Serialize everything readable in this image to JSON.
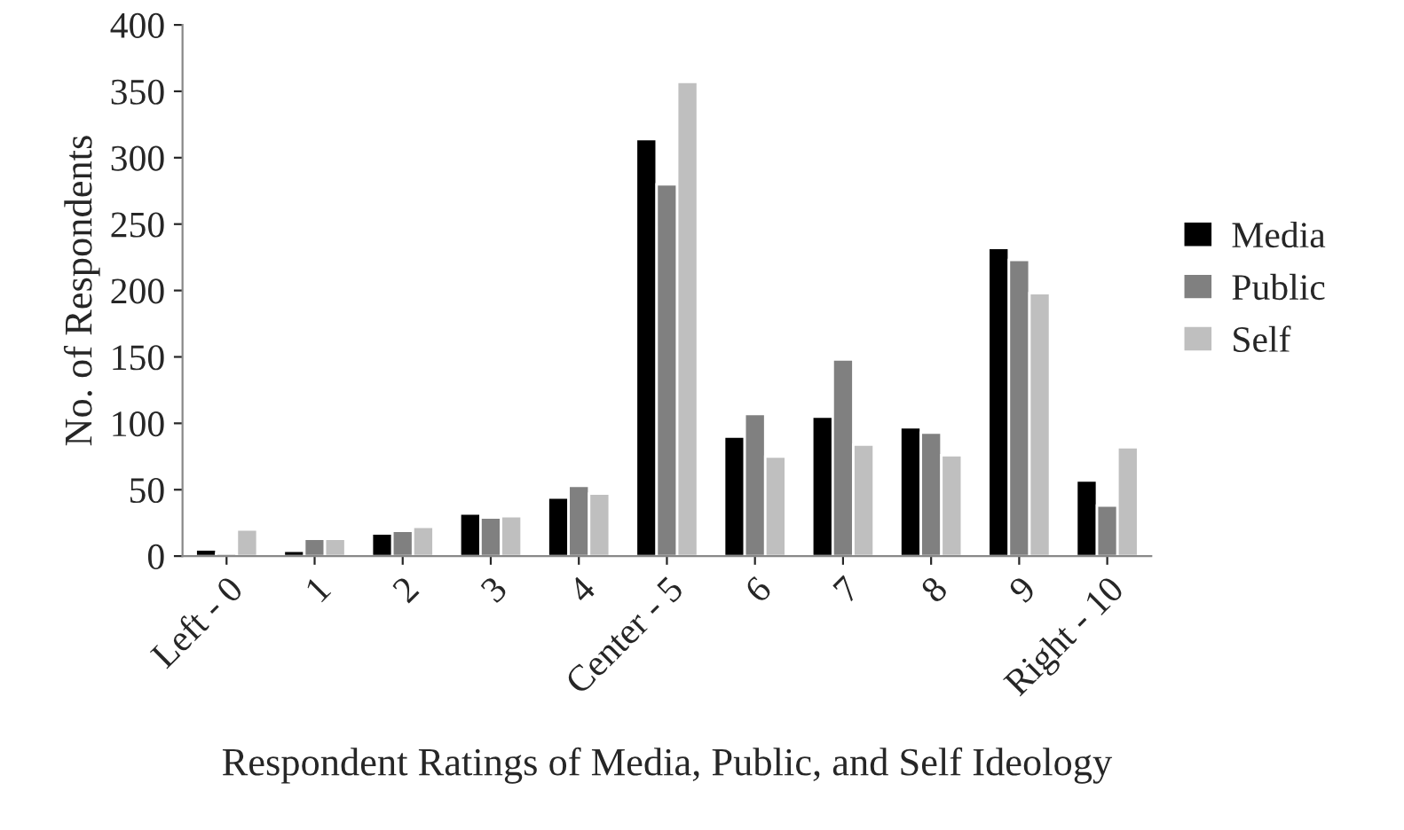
{
  "chart_data": {
    "type": "bar",
    "xlabel": "Respondent Ratings of Media, Public, and Self Ideology",
    "ylabel": "No. of Respondents",
    "categories": [
      "Left - 0",
      "1",
      "2",
      "3",
      "4",
      "Center - 5",
      "6",
      "7",
      "8",
      "9",
      "Right - 10"
    ],
    "series": [
      {
        "name": "Media",
        "color": "#000000",
        "values": [
          5,
          4,
          17,
          32,
          44,
          314,
          90,
          105,
          97,
          232,
          57
        ]
      },
      {
        "name": "Public",
        "color": "#808080",
        "values": [
          2,
          13,
          19,
          29,
          53,
          280,
          107,
          148,
          93,
          223,
          38
        ]
      },
      {
        "name": "Self",
        "color": "#bfbfbf",
        "values": [
          20,
          13,
          22,
          30,
          47,
          357,
          75,
          84,
          76,
          198,
          82
        ]
      }
    ],
    "ylim": [
      0,
      400
    ],
    "yticks": [
      0,
      50,
      100,
      150,
      200,
      250,
      300,
      350,
      400
    ],
    "grid": false,
    "legend": "right"
  }
}
